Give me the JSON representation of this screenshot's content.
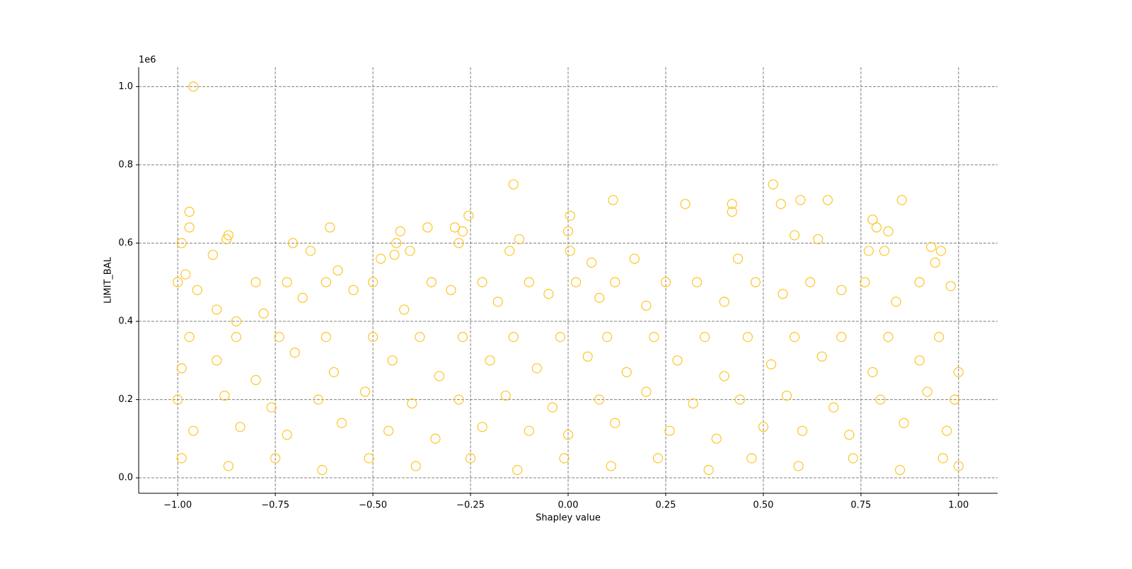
{
  "chart_data": {
    "type": "scatter",
    "xlabel": "Shapley value",
    "ylabel": "LIMIT_BAL",
    "y_offset_label": "1e6",
    "color": "#fcc624",
    "grid": true,
    "xlim": [
      -1.1,
      1.1
    ],
    "ylim": [
      -39500,
      1049500
    ],
    "xticks": [
      {
        "value": -1,
        "label": "−1.00"
      },
      {
        "value": -0.75,
        "label": "−0.75"
      },
      {
        "value": -0.5,
        "label": "−0.50"
      },
      {
        "value": -0.25,
        "label": "−0.25"
      },
      {
        "value": 0,
        "label": "0.00"
      },
      {
        "value": 0.25,
        "label": "0.25"
      },
      {
        "value": 0.5,
        "label": "0.50"
      },
      {
        "value": 0.75,
        "label": "0.75"
      },
      {
        "value": 1,
        "label": "1.00"
      }
    ],
    "yticks": [
      {
        "value": 0,
        "label": "0.0"
      },
      {
        "value": 200000,
        "label": "0.2"
      },
      {
        "value": 400000,
        "label": "0.4"
      },
      {
        "value": 600000,
        "label": "0.6"
      },
      {
        "value": 800000,
        "label": "0.8"
      },
      {
        "value": 1000000,
        "label": "1.0"
      }
    ],
    "x": [
      -0.96,
      -0.97,
      -0.97,
      -0.99,
      -0.87,
      -0.875,
      -0.91,
      -0.705,
      -0.66,
      -0.61,
      -0.59,
      -0.48,
      -0.43,
      -0.44,
      -0.445,
      -0.405,
      -0.36,
      -0.29,
      -0.27,
      -0.28,
      -0.255,
      -0.14,
      -0.125,
      -0.15,
      0.0,
      0.005,
      0.005,
      0.06,
      0.115,
      0.17,
      0.3,
      0.42,
      0.42,
      0.435,
      0.525,
      0.545,
      0.58,
      0.595,
      0.64,
      0.665,
      0.78,
      0.79,
      0.82,
      0.855,
      0.93,
      0.955,
      0.94,
      0.81,
      0.77,
      -1.0,
      -0.98,
      -0.95,
      -0.9,
      -0.85,
      -0.8,
      -0.78,
      -0.72,
      -0.68,
      -0.62,
      -0.55,
      -0.5,
      -0.42,
      -0.35,
      -0.3,
      -0.22,
      -0.18,
      -0.1,
      -0.05,
      0.02,
      0.08,
      0.12,
      0.2,
      0.25,
      0.33,
      0.4,
      0.48,
      0.55,
      0.62,
      0.7,
      0.76,
      0.84,
      0.9,
      0.98,
      -0.97,
      -0.85,
      -0.74,
      -0.62,
      -0.5,
      -0.38,
      -0.27,
      -0.14,
      -0.02,
      0.1,
      0.22,
      0.35,
      0.46,
      0.58,
      0.7,
      0.82,
      0.95,
      -0.99,
      -0.9,
      -0.8,
      -0.7,
      -0.6,
      -0.45,
      -0.33,
      -0.2,
      -0.08,
      0.05,
      0.15,
      0.28,
      0.4,
      0.52,
      0.65,
      0.78,
      0.9,
      1.0,
      -1.0,
      -0.88,
      -0.76,
      -0.64,
      -0.52,
      -0.4,
      -0.28,
      -0.16,
      -0.04,
      0.08,
      0.2,
      0.32,
      0.44,
      0.56,
      0.68,
      0.8,
      0.92,
      0.99,
      -0.96,
      -0.84,
      -0.72,
      -0.58,
      -0.46,
      -0.34,
      -0.22,
      -0.1,
      0.0,
      0.12,
      0.26,
      0.38,
      0.5,
      0.6,
      0.72,
      0.86,
      0.97,
      -0.99,
      -0.87,
      -0.75,
      -0.63,
      -0.51,
      -0.39,
      -0.25,
      -0.13,
      -0.01,
      0.11,
      0.23,
      0.36,
      0.47,
      0.59,
      0.73,
      0.85,
      0.96,
      1.0
    ],
    "values": [
      1000000,
      680000,
      640000,
      600000,
      620000,
      610000,
      570000,
      600000,
      580000,
      640000,
      530000,
      560000,
      630000,
      600000,
      570000,
      580000,
      640000,
      640000,
      630000,
      600000,
      670000,
      750000,
      610000,
      580000,
      630000,
      670000,
      580000,
      550000,
      710000,
      560000,
      700000,
      700000,
      680000,
      560000,
      750000,
      700000,
      620000,
      710000,
      610000,
      710000,
      660000,
      640000,
      630000,
      710000,
      590000,
      580000,
      550000,
      580000,
      580000,
      500000,
      520000,
      480000,
      430000,
      400000,
      500000,
      420000,
      500000,
      460000,
      500000,
      480000,
      500000,
      430000,
      500000,
      480000,
      500000,
      450000,
      500000,
      470000,
      500000,
      460000,
      500000,
      440000,
      500000,
      500000,
      450000,
      500000,
      470000,
      500000,
      480000,
      500000,
      450000,
      500000,
      490000,
      360000,
      360000,
      360000,
      360000,
      360000,
      360000,
      360000,
      360000,
      360000,
      360000,
      360000,
      360000,
      360000,
      360000,
      360000,
      360000,
      360000,
      280000,
      300000,
      250000,
      320000,
      270000,
      300000,
      260000,
      300000,
      280000,
      310000,
      270000,
      300000,
      260000,
      290000,
      310000,
      270000,
      300000,
      270000,
      200000,
      210000,
      180000,
      200000,
      220000,
      190000,
      200000,
      210000,
      180000,
      200000,
      220000,
      190000,
      200000,
      210000,
      180000,
      200000,
      220000,
      200000,
      120000,
      130000,
      110000,
      140000,
      120000,
      100000,
      130000,
      120000,
      110000,
      140000,
      120000,
      100000,
      130000,
      120000,
      110000,
      140000,
      120000,
      50000,
      30000,
      50000,
      20000,
      50000,
      30000,
      50000,
      20000,
      50000,
      30000,
      50000,
      20000,
      50000,
      30000,
      50000,
      20000,
      50000,
      30000
    ]
  }
}
